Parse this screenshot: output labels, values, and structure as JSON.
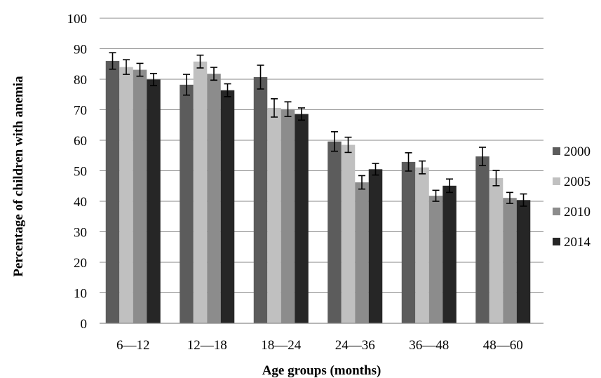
{
  "chart_data": {
    "type": "bar",
    "title": "",
    "xlabel": "Age groups (months)",
    "ylabel": "Percentage of children with anemia",
    "ylim": [
      0,
      100
    ],
    "yticks": [
      0,
      10,
      20,
      30,
      40,
      50,
      60,
      70,
      80,
      90,
      100
    ],
    "grid": true,
    "legend_position": "right",
    "categories": [
      "6—12",
      "12—18",
      "18—24",
      "24—36",
      "36—48",
      "48—60"
    ],
    "series": [
      {
        "name": "2000",
        "color": "#5c5c5c",
        "values": [
          86.0,
          78.2,
          80.7,
          59.6,
          52.9,
          54.7
        ],
        "errors": [
          2.7,
          3.4,
          3.9,
          3.2,
          3.0,
          3.0
        ]
      },
      {
        "name": "2005",
        "color": "#c0c0c0",
        "values": [
          84.0,
          85.8,
          70.6,
          58.5,
          51.1,
          47.6
        ],
        "errors": [
          2.4,
          2.1,
          3.0,
          2.5,
          2.1,
          2.5
        ]
      },
      {
        "name": "2010",
        "color": "#8c8c8c",
        "values": [
          83.1,
          81.8,
          70.2,
          46.2,
          41.8,
          41.1
        ],
        "errors": [
          2.1,
          2.1,
          2.4,
          2.2,
          1.8,
          1.8
        ]
      },
      {
        "name": "2014",
        "color": "#262626",
        "values": [
          79.9,
          76.4,
          68.6,
          50.5,
          45.1,
          40.4
        ],
        "errors": [
          2.0,
          2.1,
          2.0,
          1.9,
          2.2,
          2.0
        ]
      }
    ]
  }
}
